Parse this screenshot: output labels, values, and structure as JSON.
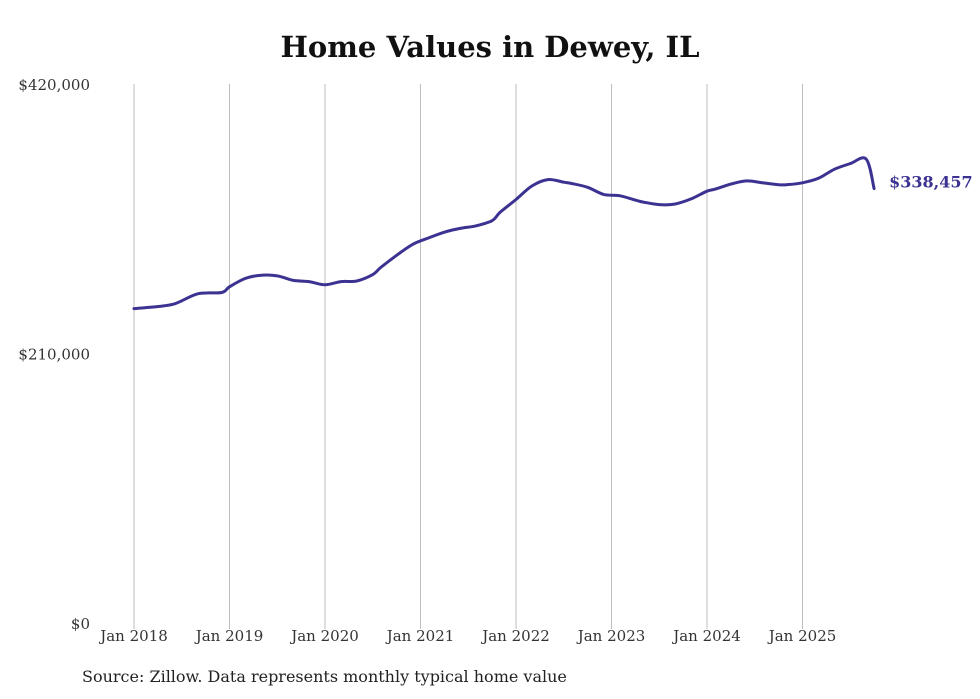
{
  "colors": {
    "line": "#3b3291",
    "grid": "#bdbdbd",
    "text": "#333333"
  },
  "source": "Source: Zillow. Data represents monthly typical home value",
  "chart_data": {
    "type": "line",
    "title": "Home Values in Dewey, IL",
    "xlabel": "",
    "ylabel": "",
    "ylim": [
      0,
      420000
    ],
    "yticks": [
      0,
      210000,
      420000
    ],
    "ytick_labels": [
      "$0",
      "$210,000",
      "$420,000"
    ],
    "xlim": [
      2018.0,
      2026.0
    ],
    "xticks": [
      2018,
      2019,
      2020,
      2021,
      2022,
      2023,
      2024,
      2025
    ],
    "xtick_labels": [
      "Jan 2018",
      "Jan 2019",
      "Jan 2020",
      "Jan 2021",
      "Jan 2022",
      "Jan 2023",
      "Jan 2024",
      "Jan 2025"
    ],
    "grid": "vertical",
    "end_label": "$338,457",
    "series": [
      {
        "name": "Typical home value",
        "x": [
          2018.0,
          2018.167,
          2018.417,
          2018.667,
          2018.917,
          2019.0,
          2019.167,
          2019.333,
          2019.5,
          2019.667,
          2019.833,
          2020.0,
          2020.167,
          2020.333,
          2020.5,
          2020.583,
          2020.75,
          2020.917,
          2021.083,
          2021.25,
          2021.417,
          2021.583,
          2021.75,
          2021.833,
          2022.0,
          2022.167,
          2022.333,
          2022.5,
          2022.583,
          2022.75,
          2022.917,
          2023.083,
          2023.25,
          2023.333,
          2023.5,
          2023.667,
          2023.833,
          2024.0,
          2024.083,
          2024.25,
          2024.417,
          2024.583,
          2024.75,
          2024.833,
          2025.0,
          2025.167,
          2025.333,
          2025.5,
          2025.667,
          2025.75
        ],
        "values": [
          245000,
          246000,
          248500,
          256500,
          257500,
          262000,
          268500,
          271000,
          270500,
          267000,
          266000,
          263500,
          266000,
          266500,
          271500,
          277000,
          286500,
          295000,
          300000,
          304500,
          307500,
          309500,
          313500,
          320000,
          330000,
          340500,
          345500,
          343500,
          342500,
          339500,
          334000,
          333000,
          329500,
          328000,
          326000,
          326500,
          330500,
          336500,
          338000,
          342000,
          344500,
          343000,
          341500,
          341500,
          343000,
          346500,
          353500,
          358000,
          361500,
          338457
        ]
      }
    ]
  }
}
